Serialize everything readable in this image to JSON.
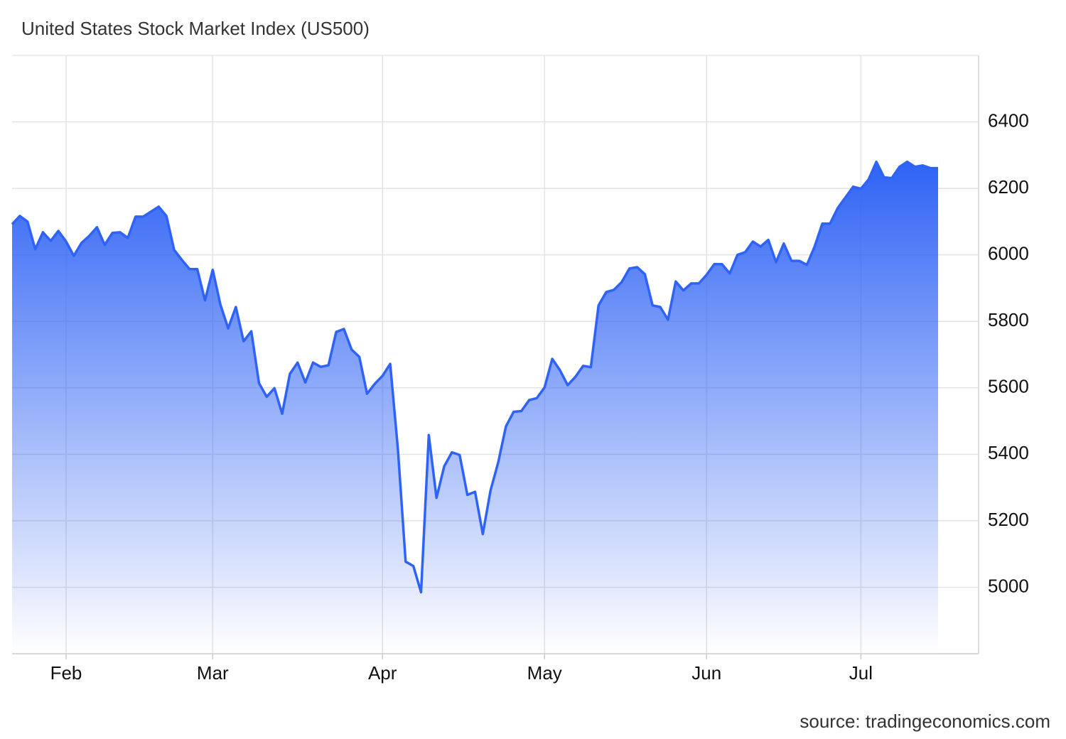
{
  "chart_data": {
    "type": "area",
    "title": "United States Stock Market Index (US500)",
    "source": "source: tradingeconomics.com",
    "categories": [
      null,
      null,
      null,
      null,
      null,
      null,
      null,
      "Feb",
      null,
      null,
      null,
      null,
      null,
      null,
      null,
      null,
      null,
      null,
      null,
      null,
      null,
      null,
      null,
      null,
      null,
      null,
      "Mar",
      null,
      null,
      null,
      null,
      null,
      null,
      null,
      null,
      null,
      null,
      null,
      null,
      null,
      null,
      null,
      null,
      null,
      null,
      null,
      null,
      null,
      "Apr",
      null,
      null,
      null,
      null,
      null,
      null,
      null,
      null,
      null,
      null,
      null,
      null,
      null,
      null,
      null,
      null,
      null,
      null,
      null,
      null,
      "May",
      null,
      null,
      null,
      null,
      null,
      null,
      null,
      null,
      null,
      null,
      null,
      null,
      null,
      null,
      null,
      null,
      null,
      null,
      null,
      null,
      "Jun",
      null,
      null,
      null,
      null,
      null,
      null,
      null,
      null,
      null,
      null,
      null,
      null,
      null,
      null,
      null,
      null,
      null,
      null,
      null,
      "Jul",
      null,
      null,
      null,
      null,
      null,
      null,
      null,
      null,
      null,
      null
    ],
    "values": [
      6092,
      6117,
      6100,
      6017,
      6068,
      6042,
      6072,
      6040,
      5997,
      6036,
      6057,
      6083,
      6030,
      6066,
      6068,
      6051,
      6115,
      6115,
      6130,
      6145,
      6117,
      6015,
      5985,
      5957,
      5957,
      5863,
      5955,
      5850,
      5779,
      5843,
      5740,
      5770,
      5614,
      5573,
      5599,
      5522,
      5642,
      5676,
      5616,
      5676,
      5663,
      5668,
      5768,
      5777,
      5715,
      5693,
      5582,
      5612,
      5636,
      5672,
      5415,
      5077,
      5064,
      4985,
      5458,
      5269,
      5364,
      5406,
      5398,
      5278,
      5287,
      5160,
      5291,
      5376,
      5484,
      5528,
      5530,
      5563,
      5569,
      5601,
      5687,
      5653,
      5608,
      5633,
      5666,
      5662,
      5848,
      5888,
      5895,
      5918,
      5959,
      5963,
      5942,
      5848,
      5843,
      5805,
      5920,
      5893,
      5914,
      5914,
      5940,
      5972,
      5972,
      5944,
      6000,
      6008,
      6040,
      6025,
      6045,
      5978,
      6034,
      5982,
      5982,
      5970,
      6025,
      6094,
      6094,
      6141,
      6173,
      6205,
      6199,
      6227,
      6280,
      6233,
      6231,
      6265,
      6280,
      6265,
      6269,
      6261,
      6261
    ],
    "color": "#2f63f5",
    "ylim": [
      4800,
      6600
    ],
    "yticks": [
      5000,
      5200,
      5400,
      5600,
      5800,
      6000,
      6200,
      6400
    ],
    "grid": true,
    "y_axis_side": "right"
  }
}
